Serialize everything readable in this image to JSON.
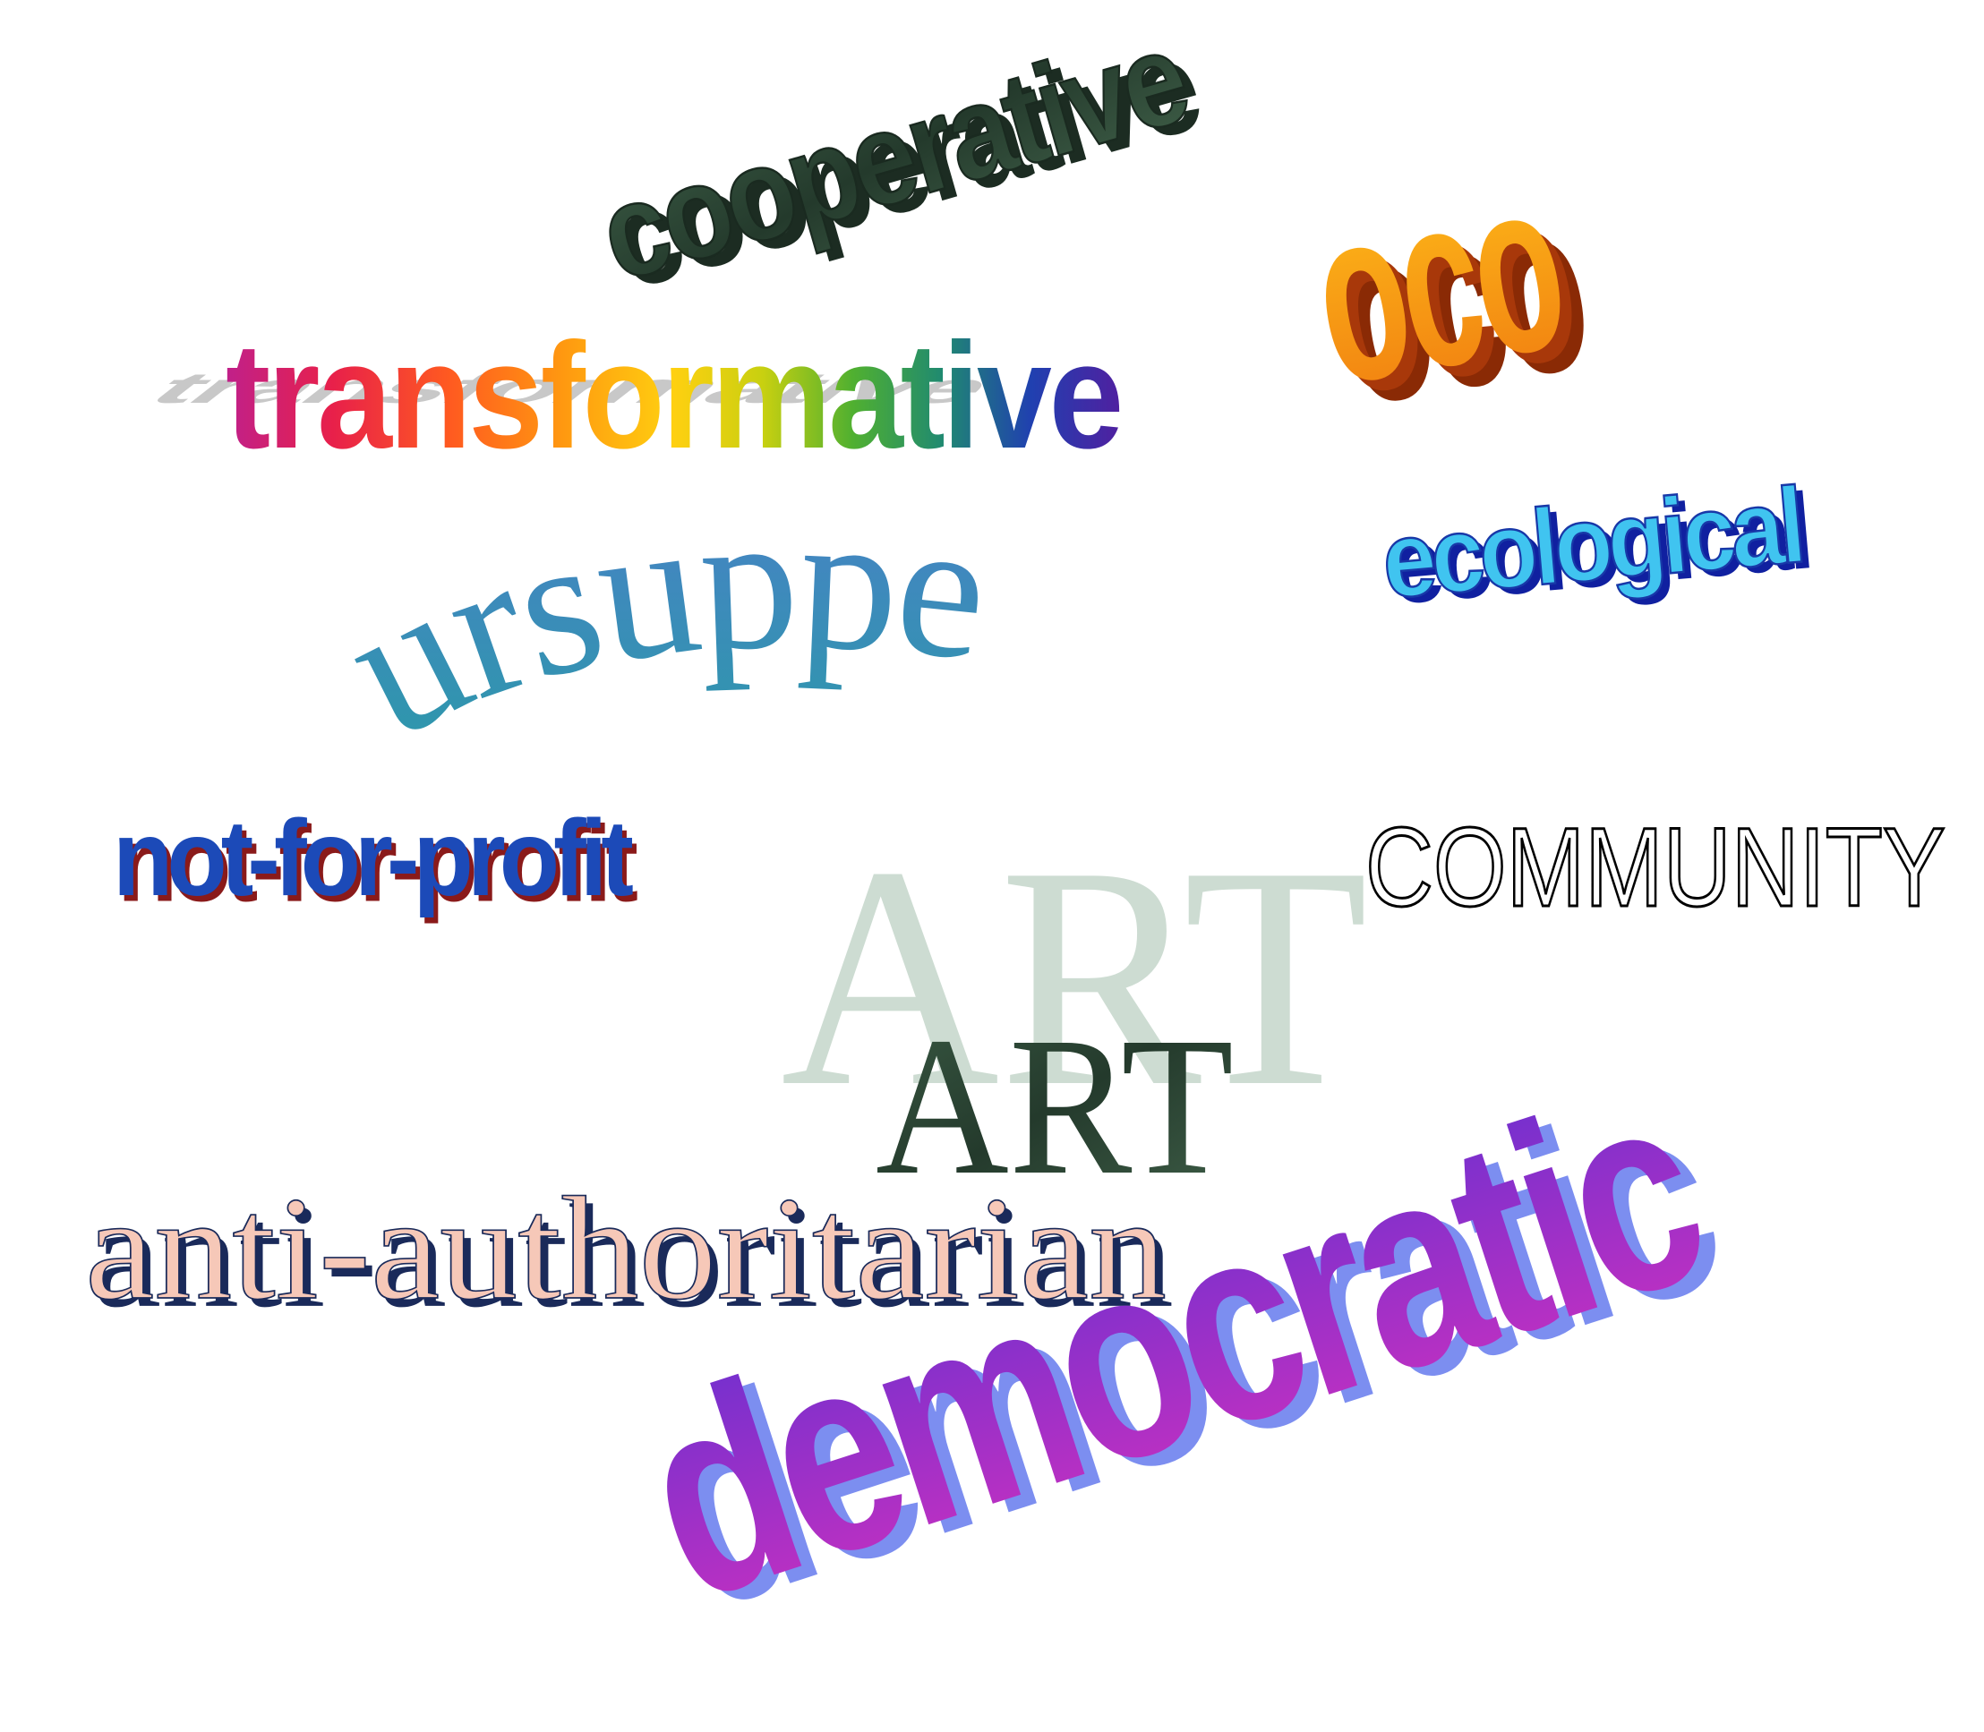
{
  "words": {
    "cooperative": "cooperative",
    "oco": "oco",
    "transformative": "transformative",
    "ecological": "ecological",
    "ursuppe": "ursuppe",
    "not_for_profit": "not-for-profit",
    "community": "COMMUNITY",
    "art_ghost": "ART",
    "art": "ART",
    "anti_authoritarian": "anti-authoritarian",
    "democratic": "democratic"
  },
  "colors": {
    "background": "#ffffff",
    "cooperative_fill": "#2f4a38",
    "cooperative_extrude": "#1c2c22",
    "oco_top": "#ffc21a",
    "oco_bottom": "#f07a10",
    "oco_extrude": "#8a2a05",
    "ecological_fill": "#40c4f0",
    "ecological_extrude": "#1020a0",
    "ursuppe_top": "#4a80c8",
    "ursuppe_bottom": "#2a9aa8",
    "not_for_profit_fill": "#1c4ab8",
    "not_for_profit_shadow": "#8a1a1a",
    "community_stroke": "#000000",
    "art_ghost_fill": "#cddcd2",
    "art_fill": "#2f4a38",
    "anti_authoritarian_fill": "#f6c8b8",
    "anti_authoritarian_shadow": "#1a2a5a",
    "democratic_top": "#7030d0",
    "democratic_bottom": "#c030c0",
    "democratic_extrude": "#7c8ef0",
    "transformative_rainbow": [
      "#c0208a",
      "#e8204a",
      "#ff5a20",
      "#ff9a10",
      "#ffd010",
      "#c8d010",
      "#50b030",
      "#208a70",
      "#2040b0",
      "#5020a0"
    ],
    "transformative_shadow": "#c8c8c8"
  }
}
